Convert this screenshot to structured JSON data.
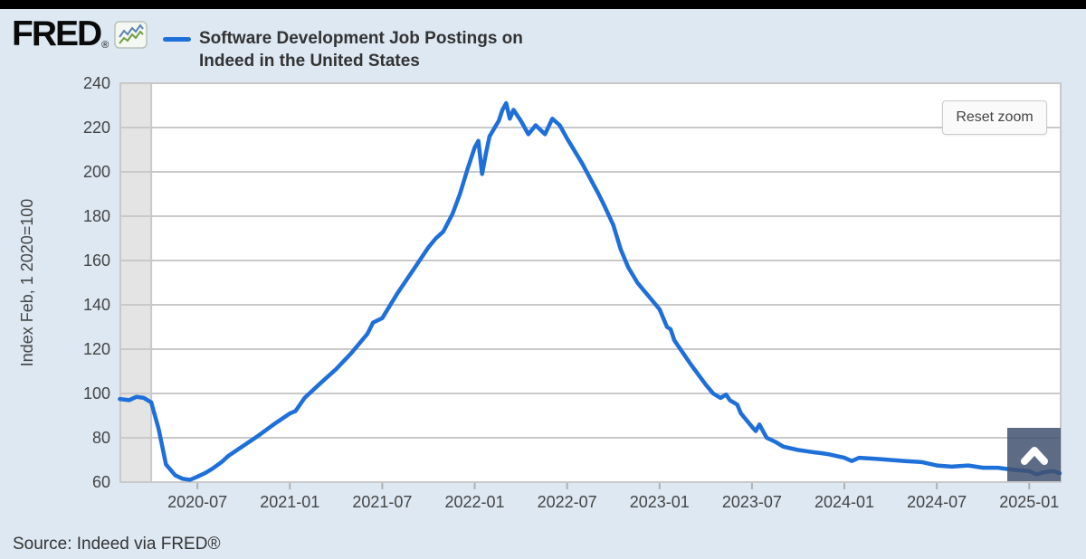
{
  "header": {
    "logo_text": "FRED",
    "logo_reg": "®",
    "series_title_line1": "Software Development Job Postings on",
    "series_title_line2": "Indeed in the United States"
  },
  "chart": {
    "reset_zoom_label": "Reset zoom"
  },
  "footer": {
    "source": "Source: Indeed via FRED®"
  },
  "icons": {
    "logo_icon": "fred-sparkline-icon",
    "corner_icon": "chevron-up-icon"
  },
  "colors": {
    "page_background": "#dde8f3",
    "plot_background": "#ffffff",
    "grid": "#c9c9c9",
    "axis_text": "#444444",
    "recession_band": "#e4e4e4",
    "series_blue": "#1e6fd9",
    "corner_button": "rgba(66,81,110,0.85)",
    "top_bar": "#000000"
  },
  "chart_data": {
    "type": "line",
    "title": "Software Development Job Postings on Indeed in the United States",
    "xlabel": "",
    "ylabel": "Index Feb, 1 2020=100",
    "ylim": [
      60,
      240
    ],
    "y_ticks": [
      60,
      80,
      100,
      120,
      140,
      160,
      180,
      200,
      220,
      240
    ],
    "x_tick_labels": [
      "2020-07",
      "2021-01",
      "2021-07",
      "2022-01",
      "2022-07",
      "2023-01",
      "2023-07",
      "2024-01",
      "2024-07",
      "2025-01"
    ],
    "xlim_decimal_years": [
      2020.083,
      2025.17
    ],
    "recession_band_decimal_years": [
      2020.083,
      2020.25
    ],
    "grid": true,
    "legend_position": "top-left",
    "series": [
      {
        "name": "Software Development Job Postings on Indeed in the United States",
        "color": "#1e6fd9",
        "points": [
          [
            2020.08,
            97.5
          ],
          [
            2020.13,
            97
          ],
          [
            2020.17,
            98.5
          ],
          [
            2020.21,
            98
          ],
          [
            2020.25,
            96
          ],
          [
            2020.29,
            84
          ],
          [
            2020.33,
            68
          ],
          [
            2020.38,
            63
          ],
          [
            2020.42,
            61.5
          ],
          [
            2020.46,
            61
          ],
          [
            2020.5,
            62.5
          ],
          [
            2020.54,
            64
          ],
          [
            2020.58,
            66
          ],
          [
            2020.63,
            69
          ],
          [
            2020.67,
            72
          ],
          [
            2020.75,
            76.5
          ],
          [
            2020.83,
            81
          ],
          [
            2020.92,
            86.5
          ],
          [
            2021.0,
            91
          ],
          [
            2021.03,
            92
          ],
          [
            2021.08,
            98
          ],
          [
            2021.17,
            105
          ],
          [
            2021.25,
            111
          ],
          [
            2021.33,
            118
          ],
          [
            2021.42,
            127
          ],
          [
            2021.45,
            132
          ],
          [
            2021.5,
            134
          ],
          [
            2021.58,
            145
          ],
          [
            2021.67,
            156
          ],
          [
            2021.75,
            166
          ],
          [
            2021.79,
            170
          ],
          [
            2021.83,
            173
          ],
          [
            2021.88,
            181
          ],
          [
            2021.92,
            190
          ],
          [
            2021.96,
            201
          ],
          [
            2022.0,
            211
          ],
          [
            2022.02,
            214
          ],
          [
            2022.04,
            199
          ],
          [
            2022.06,
            208
          ],
          [
            2022.08,
            216
          ],
          [
            2022.13,
            223
          ],
          [
            2022.15,
            228
          ],
          [
            2022.17,
            231
          ],
          [
            2022.19,
            224
          ],
          [
            2022.21,
            228
          ],
          [
            2022.25,
            223
          ],
          [
            2022.29,
            217
          ],
          [
            2022.33,
            221
          ],
          [
            2022.38,
            217
          ],
          [
            2022.42,
            224
          ],
          [
            2022.46,
            221
          ],
          [
            2022.5,
            215
          ],
          [
            2022.58,
            204
          ],
          [
            2022.67,
            190
          ],
          [
            2022.7,
            185
          ],
          [
            2022.75,
            176
          ],
          [
            2022.79,
            165
          ],
          [
            2022.83,
            157
          ],
          [
            2022.88,
            150
          ],
          [
            2022.92,
            146
          ],
          [
            2022.96,
            142
          ],
          [
            2023.0,
            138
          ],
          [
            2023.04,
            130
          ],
          [
            2023.06,
            129
          ],
          [
            2023.08,
            124
          ],
          [
            2023.17,
            113
          ],
          [
            2023.25,
            104
          ],
          [
            2023.29,
            100
          ],
          [
            2023.33,
            98
          ],
          [
            2023.36,
            99.5
          ],
          [
            2023.38,
            97
          ],
          [
            2023.42,
            95
          ],
          [
            2023.44,
            91
          ],
          [
            2023.5,
            85
          ],
          [
            2023.52,
            83
          ],
          [
            2023.54,
            86
          ],
          [
            2023.58,
            80
          ],
          [
            2023.63,
            78
          ],
          [
            2023.67,
            76
          ],
          [
            2023.75,
            74.5
          ],
          [
            2023.79,
            74
          ],
          [
            2023.83,
            73.5
          ],
          [
            2023.88,
            73
          ],
          [
            2023.92,
            72.5
          ],
          [
            2024.0,
            71
          ],
          [
            2024.04,
            69.5
          ],
          [
            2024.08,
            71
          ],
          [
            2024.17,
            70.5
          ],
          [
            2024.25,
            70
          ],
          [
            2024.33,
            69.5
          ],
          [
            2024.42,
            69
          ],
          [
            2024.5,
            67.5
          ],
          [
            2024.58,
            67
          ],
          [
            2024.67,
            67.5
          ],
          [
            2024.75,
            66.5
          ],
          [
            2024.83,
            66.5
          ],
          [
            2024.92,
            65.5
          ],
          [
            2025.0,
            65
          ],
          [
            2025.04,
            63.5
          ],
          [
            2025.08,
            64.5
          ],
          [
            2025.13,
            65
          ],
          [
            2025.165,
            64
          ]
        ]
      }
    ]
  }
}
